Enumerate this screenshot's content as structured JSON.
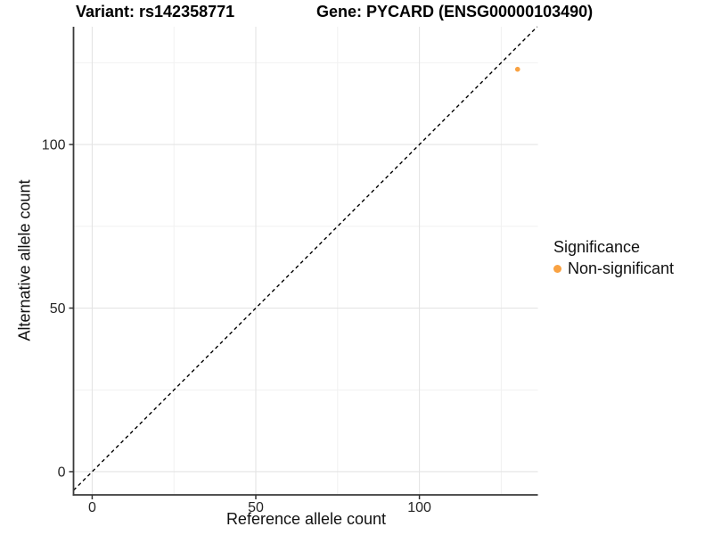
{
  "chart_data": {
    "type": "scatter",
    "title_left": "Variant: rs142358771",
    "title_right": "Gene: PYCARD (ENSG00000103490)",
    "xlabel": "Reference allele count",
    "ylabel": "Alternative allele count",
    "x_ticks": [
      0,
      50,
      100
    ],
    "y_ticks": [
      0,
      50,
      100
    ],
    "x_minor_ticks": [
      25,
      75,
      125
    ],
    "y_minor_ticks": [
      25,
      75,
      125
    ],
    "xlim": [
      -5.7,
      136.2
    ],
    "ylim": [
      -7.1,
      136.0
    ],
    "grid": true,
    "legend_position": "right",
    "identity_line": {
      "slope": 1,
      "intercept": 0,
      "style": "dashed",
      "color": "#000000"
    },
    "series": [
      {
        "name": "Non-significant",
        "color": "#F9A242",
        "points": [
          {
            "x": 130,
            "y": 123
          }
        ]
      }
    ],
    "legend": {
      "title": "Significance",
      "items": [
        {
          "label": "Non-significant",
          "color": "#F9A242"
        }
      ]
    },
    "colors": {
      "grid_major": "#E4E4E4",
      "grid_minor": "#F1F1F1",
      "axis_line": "#3A3A3A",
      "tick_mark": "#333333",
      "tick_text": "#262626",
      "background": "#FFFFFF"
    }
  }
}
